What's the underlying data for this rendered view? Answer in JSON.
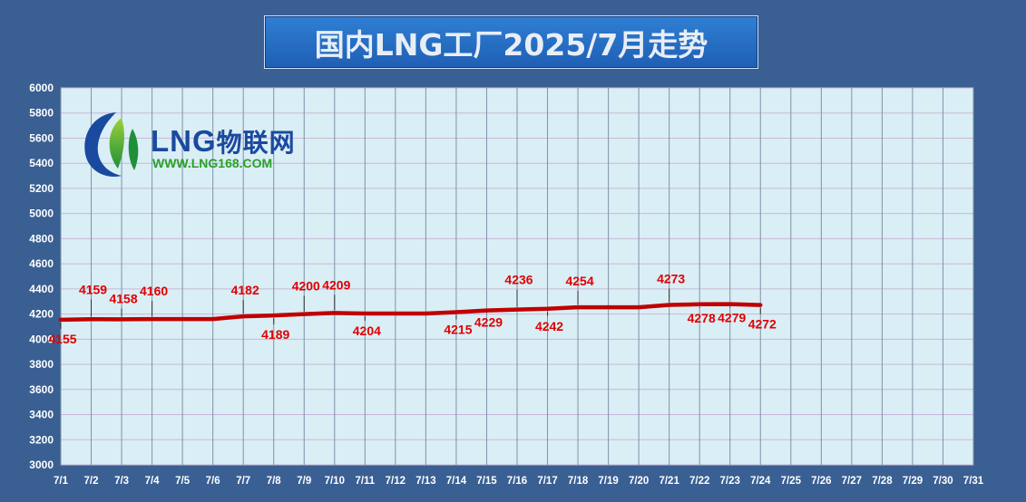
{
  "title": "国内LNG工厂2025/7月走势",
  "logo": {
    "brand": "LNG",
    "brand_cn": "物联网",
    "url": "WWW.LNG168.COM"
  },
  "colors": {
    "background": "#3a5f92",
    "plot_background": "#daeef5",
    "line": "#c00000",
    "label": "#e00000"
  },
  "chart_data": {
    "type": "line",
    "title": "国内LNG工厂2025/7月走势",
    "categories": [
      "7/1",
      "7/2",
      "7/3",
      "7/4",
      "7/5",
      "7/6",
      "7/7",
      "7/8",
      "7/9",
      "7/10",
      "7/11",
      "7/12",
      "7/13",
      "7/14",
      "7/15",
      "7/16",
      "7/17",
      "7/18",
      "7/19",
      "7/20",
      "7/21",
      "7/22",
      "7/23",
      "7/24",
      "7/25",
      "7/26",
      "7/27",
      "7/28",
      "7/29",
      "7/30",
      "7/31"
    ],
    "series": [
      {
        "values": [
          4155,
          4159,
          4158,
          4160,
          4160,
          4160,
          4182,
          4189,
          4200,
          4209,
          4204,
          4204,
          4204,
          4215,
          4229,
          4236,
          4242,
          4254,
          4254,
          4254,
          4273,
          4278,
          4279,
          4272,
          null,
          null,
          null,
          null,
          null,
          null,
          null
        ]
      }
    ],
    "data_labels": [
      {
        "day": "7/1",
        "value": 4155
      },
      {
        "day": "7/2",
        "value": 4159
      },
      {
        "day": "7/3",
        "value": 4158
      },
      {
        "day": "7/4",
        "value": 4160
      },
      {
        "day": "7/7",
        "value": 4182
      },
      {
        "day": "7/8",
        "value": 4189
      },
      {
        "day": "7/9",
        "value": 4200
      },
      {
        "day": "7/10",
        "value": 4209
      },
      {
        "day": "7/11",
        "value": 4204
      },
      {
        "day": "7/14",
        "value": 4215
      },
      {
        "day": "7/15",
        "value": 4229
      },
      {
        "day": "7/16",
        "value": 4236
      },
      {
        "day": "7/17",
        "value": 4242
      },
      {
        "day": "7/18",
        "value": 4254
      },
      {
        "day": "7/21",
        "value": 4273
      },
      {
        "day": "7/22",
        "value": 4278
      },
      {
        "day": "7/23",
        "value": 4279
      },
      {
        "day": "7/24",
        "value": 4272
      }
    ],
    "ylim": [
      3000,
      6000
    ],
    "yticks": [
      3000,
      3200,
      3400,
      3600,
      3800,
      4000,
      4200,
      4400,
      4600,
      4800,
      5000,
      5200,
      5400,
      5600,
      5800,
      6000
    ],
    "grid": true,
    "legend": "none"
  }
}
